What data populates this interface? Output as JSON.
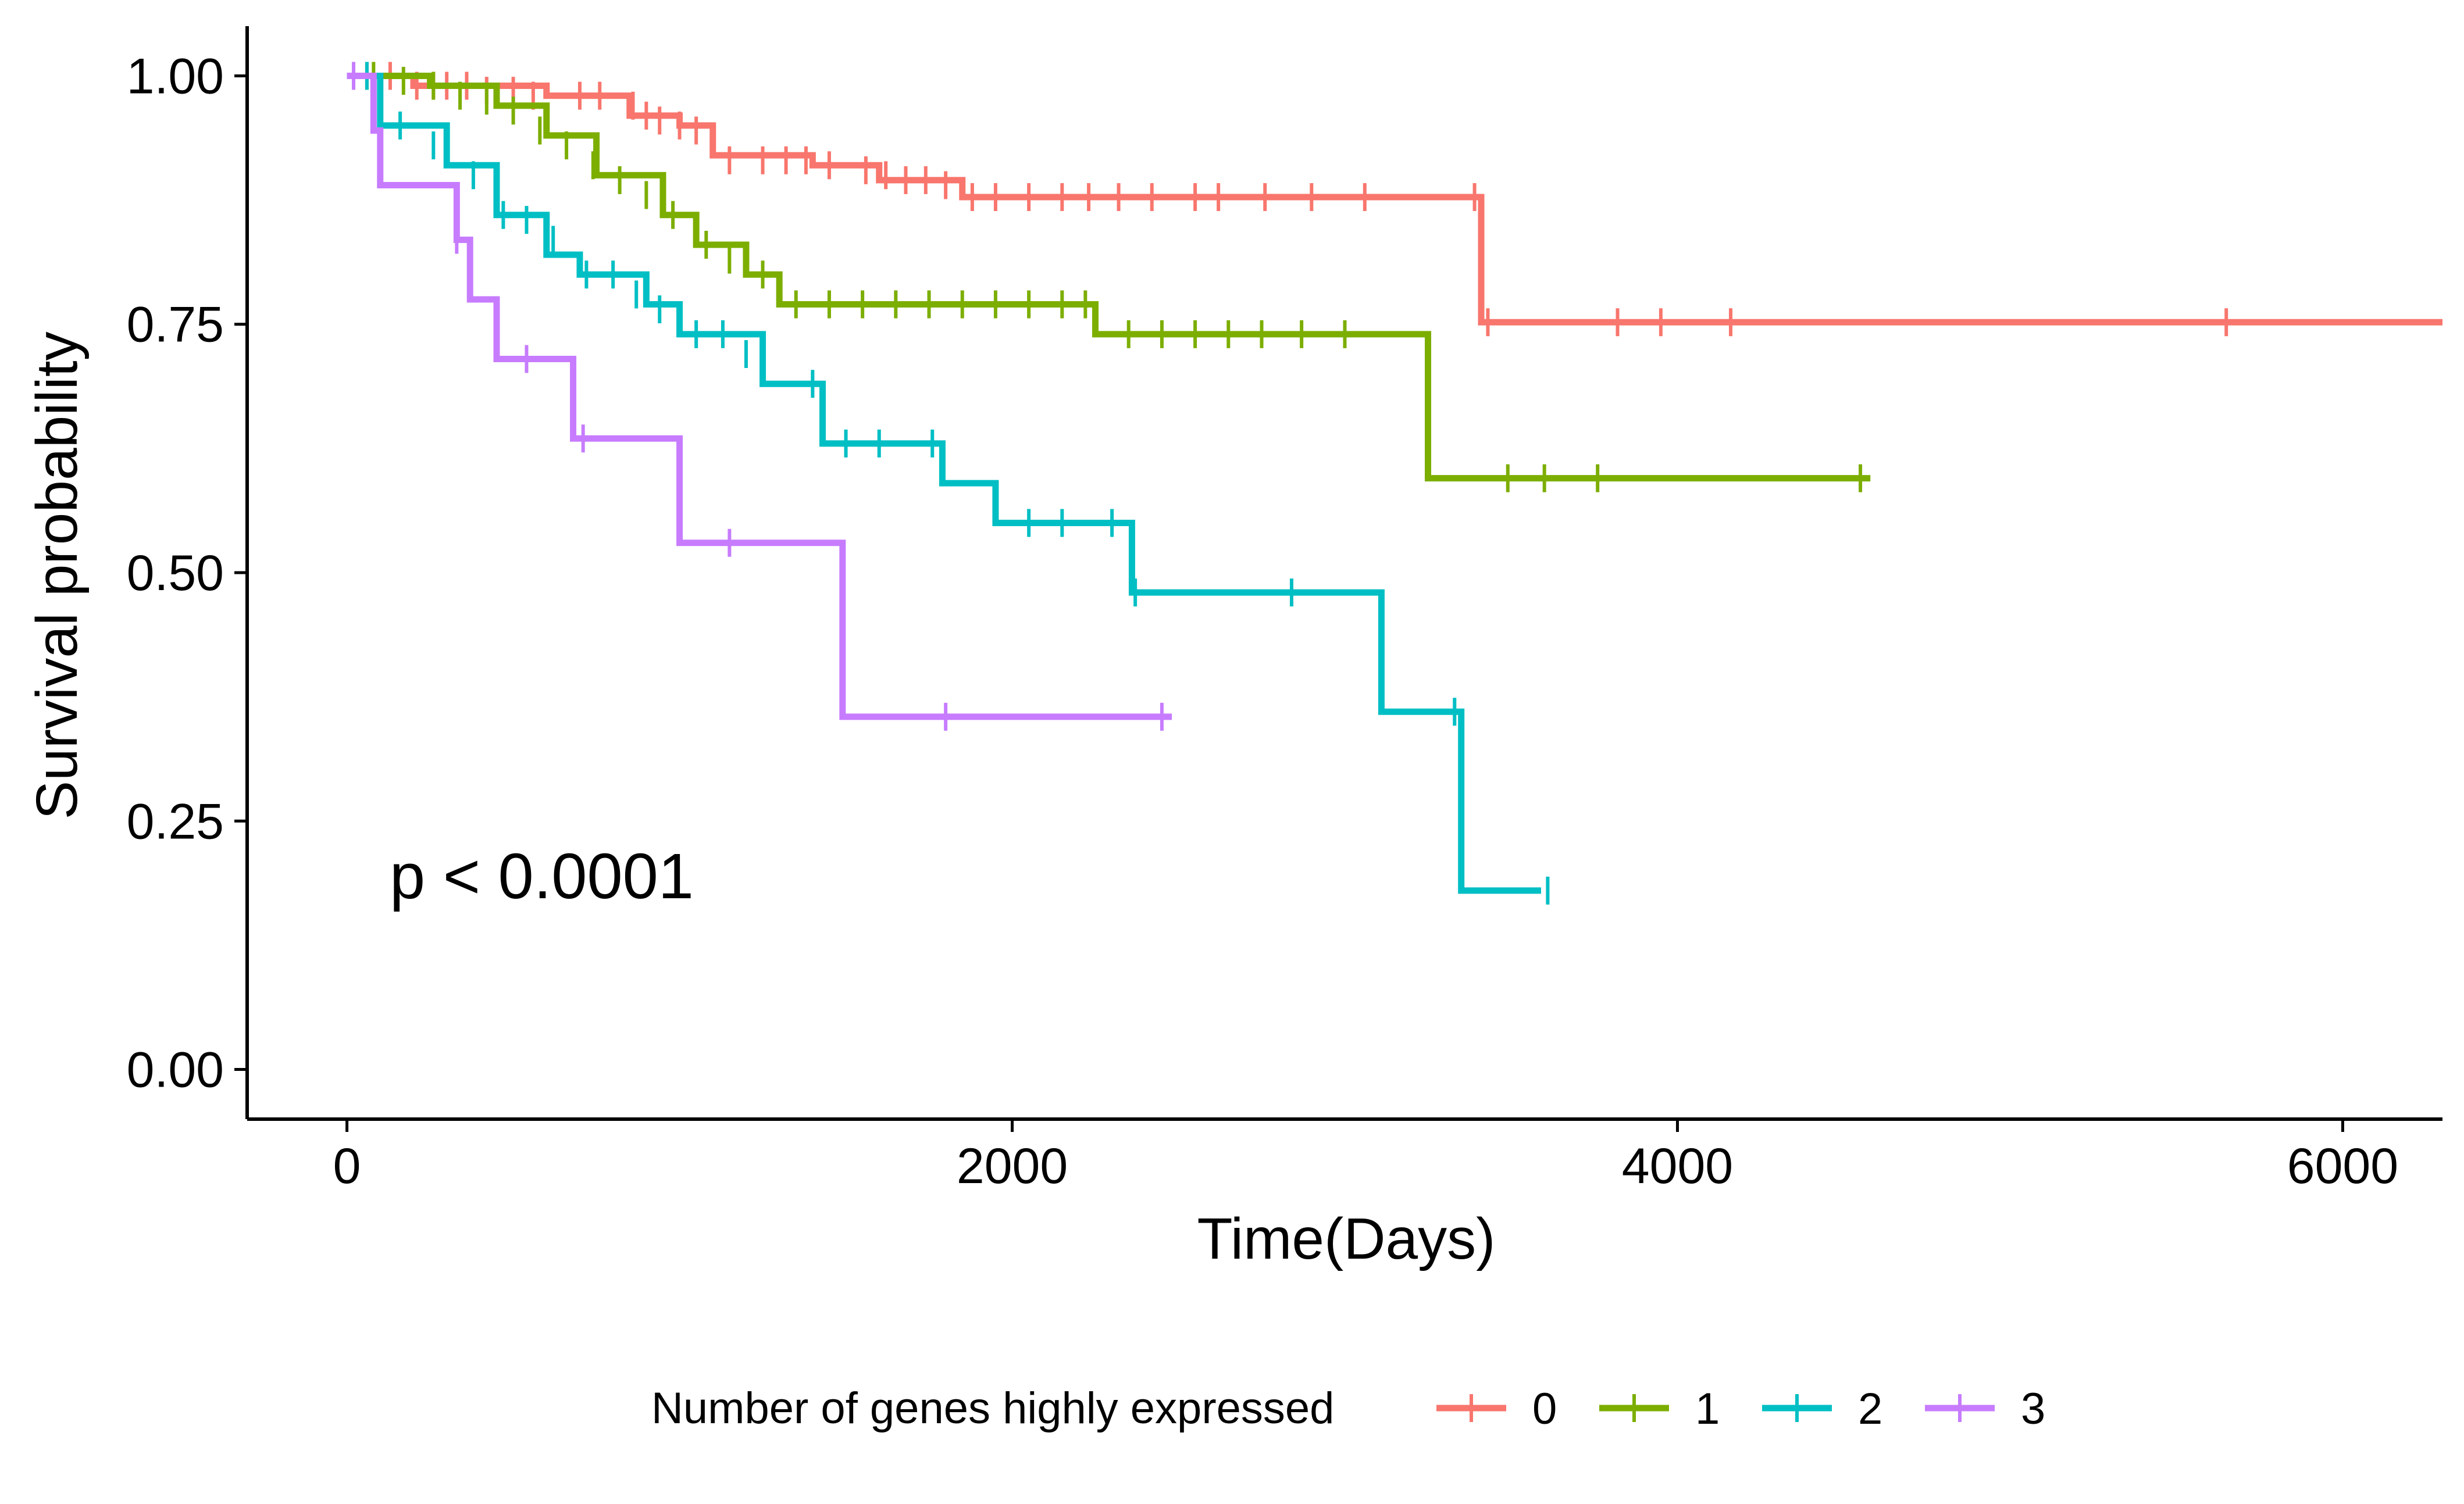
{
  "chart_data": {
    "type": "line",
    "subtype": "kaplan-meier",
    "xlabel": "Time(Days)",
    "ylabel": "Survival probability",
    "xlim": [
      -300,
      6300
    ],
    "ylim": [
      -0.05,
      1.05
    ],
    "x_ticks": [
      0,
      2000,
      4000,
      6000
    ],
    "x_tick_labels": [
      "0",
      "2000",
      "4000",
      "6000"
    ],
    "y_ticks": [
      0,
      0.25,
      0.5,
      0.75,
      1
    ],
    "y_tick_labels": [
      "0.00",
      "0.25",
      "0.50",
      "0.75",
      "1.00"
    ],
    "annotation": "p < 0.0001",
    "grid": false,
    "legend": {
      "title": "Number of genes highly expressed",
      "position": "bottom"
    },
    "series": [
      {
        "name": "0",
        "color": "#F8766D",
        "steps": [
          [
            0,
            1.0
          ],
          [
            200,
            0.99
          ],
          [
            600,
            0.98
          ],
          [
            850,
            0.96
          ],
          [
            1000,
            0.95
          ],
          [
            1100,
            0.92
          ],
          [
            1400,
            0.91
          ],
          [
            1600,
            0.895
          ],
          [
            1850,
            0.878
          ],
          [
            3410,
            0.752
          ],
          [
            6300,
            0.752
          ]
        ],
        "censors": [
          [
            60,
            1.0
          ],
          [
            130,
            1.0
          ],
          [
            210,
            0.99
          ],
          [
            260,
            0.99
          ],
          [
            300,
            0.99
          ],
          [
            360,
            0.99
          ],
          [
            420,
            0.985
          ],
          [
            500,
            0.985
          ],
          [
            560,
            0.98
          ],
          [
            700,
            0.98
          ],
          [
            760,
            0.98
          ],
          [
            860,
            0.97
          ],
          [
            900,
            0.96
          ],
          [
            940,
            0.955
          ],
          [
            1000,
            0.95
          ],
          [
            1050,
            0.945
          ],
          [
            1150,
            0.915
          ],
          [
            1250,
            0.915
          ],
          [
            1320,
            0.915
          ],
          [
            1380,
            0.915
          ],
          [
            1450,
            0.91
          ],
          [
            1560,
            0.905
          ],
          [
            1620,
            0.9
          ],
          [
            1680,
            0.895
          ],
          [
            1740,
            0.895
          ],
          [
            1800,
            0.89
          ],
          [
            1880,
            0.878
          ],
          [
            1950,
            0.878
          ],
          [
            2050,
            0.878
          ],
          [
            2150,
            0.878
          ],
          [
            2230,
            0.878
          ],
          [
            2320,
            0.878
          ],
          [
            2420,
            0.878
          ],
          [
            2550,
            0.878
          ],
          [
            2620,
            0.878
          ],
          [
            2760,
            0.878
          ],
          [
            2900,
            0.878
          ],
          [
            3060,
            0.878
          ],
          [
            3390,
            0.878
          ],
          [
            3430,
            0.752
          ],
          [
            3820,
            0.752
          ],
          [
            3950,
            0.752
          ],
          [
            4160,
            0.752
          ],
          [
            5650,
            0.752
          ]
        ]
      },
      {
        "name": "1",
        "color": "#7CAE00",
        "steps": [
          [
            0,
            1.0
          ],
          [
            250,
            0.99
          ],
          [
            450,
            0.97
          ],
          [
            600,
            0.94
          ],
          [
            750,
            0.9
          ],
          [
            950,
            0.86
          ],
          [
            1050,
            0.83
          ],
          [
            1200,
            0.8
          ],
          [
            1300,
            0.77
          ],
          [
            2250,
            0.74
          ],
          [
            3250,
            0.595
          ],
          [
            4580,
            0.595
          ]
        ],
        "censors": [
          [
            80,
            1.0
          ],
          [
            170,
            0.995
          ],
          [
            260,
            0.99
          ],
          [
            340,
            0.98
          ],
          [
            420,
            0.975
          ],
          [
            500,
            0.965
          ],
          [
            580,
            0.945
          ],
          [
            660,
            0.93
          ],
          [
            740,
            0.91
          ],
          [
            820,
            0.895
          ],
          [
            900,
            0.88
          ],
          [
            980,
            0.86
          ],
          [
            1080,
            0.83
          ],
          [
            1150,
            0.815
          ],
          [
            1250,
            0.8
          ],
          [
            1350,
            0.77
          ],
          [
            1450,
            0.77
          ],
          [
            1550,
            0.77
          ],
          [
            1650,
            0.77
          ],
          [
            1750,
            0.77
          ],
          [
            1850,
            0.77
          ],
          [
            1950,
            0.77
          ],
          [
            2050,
            0.77
          ],
          [
            2150,
            0.77
          ],
          [
            2220,
            0.77
          ],
          [
            2350,
            0.74
          ],
          [
            2450,
            0.74
          ],
          [
            2550,
            0.74
          ],
          [
            2650,
            0.74
          ],
          [
            2750,
            0.74
          ],
          [
            2870,
            0.74
          ],
          [
            3000,
            0.74
          ],
          [
            3490,
            0.595
          ],
          [
            3600,
            0.595
          ],
          [
            3760,
            0.595
          ],
          [
            4550,
            0.595
          ]
        ]
      },
      {
        "name": "2",
        "color": "#00BFC4",
        "steps": [
          [
            0,
            1.0
          ],
          [
            100,
            0.95
          ],
          [
            300,
            0.91
          ],
          [
            450,
            0.86
          ],
          [
            600,
            0.82
          ],
          [
            700,
            0.8
          ],
          [
            900,
            0.77
          ],
          [
            1000,
            0.74
          ],
          [
            1250,
            0.69
          ],
          [
            1430,
            0.63
          ],
          [
            1790,
            0.59
          ],
          [
            1950,
            0.55
          ],
          [
            2360,
            0.48
          ],
          [
            3110,
            0.36
          ],
          [
            3350,
            0.18
          ],
          [
            3590,
            0.18
          ]
        ],
        "censors": [
          [
            60,
            1.0
          ],
          [
            160,
            0.95
          ],
          [
            260,
            0.93
          ],
          [
            380,
            0.9
          ],
          [
            470,
            0.86
          ],
          [
            540,
            0.855
          ],
          [
            620,
            0.835
          ],
          [
            720,
            0.8
          ],
          [
            800,
            0.8
          ],
          [
            870,
            0.78
          ],
          [
            940,
            0.765
          ],
          [
            1050,
            0.74
          ],
          [
            1130,
            0.74
          ],
          [
            1200,
            0.72
          ],
          [
            1400,
            0.69
          ],
          [
            1500,
            0.63
          ],
          [
            1600,
            0.63
          ],
          [
            1760,
            0.63
          ],
          [
            2050,
            0.55
          ],
          [
            2150,
            0.55
          ],
          [
            2300,
            0.55
          ],
          [
            2370,
            0.48
          ],
          [
            2840,
            0.48
          ],
          [
            3330,
            0.36
          ],
          [
            3610,
            0.18
          ]
        ]
      },
      {
        "name": "3",
        "color": "#C77CFF",
        "steps": [
          [
            0,
            1.0
          ],
          [
            80,
            0.945
          ],
          [
            100,
            0.89
          ],
          [
            330,
            0.835
          ],
          [
            370,
            0.775
          ],
          [
            450,
            0.715
          ],
          [
            680,
            0.635
          ],
          [
            1000,
            0.53
          ],
          [
            1490,
            0.355
          ],
          [
            2480,
            0.355
          ]
        ],
        "censors": [
          [
            20,
            1.0
          ],
          [
            330,
            0.835
          ],
          [
            540,
            0.715
          ],
          [
            710,
            0.635
          ],
          [
            1150,
            0.53
          ],
          [
            1800,
            0.355
          ],
          [
            2450,
            0.355
          ]
        ]
      }
    ]
  }
}
